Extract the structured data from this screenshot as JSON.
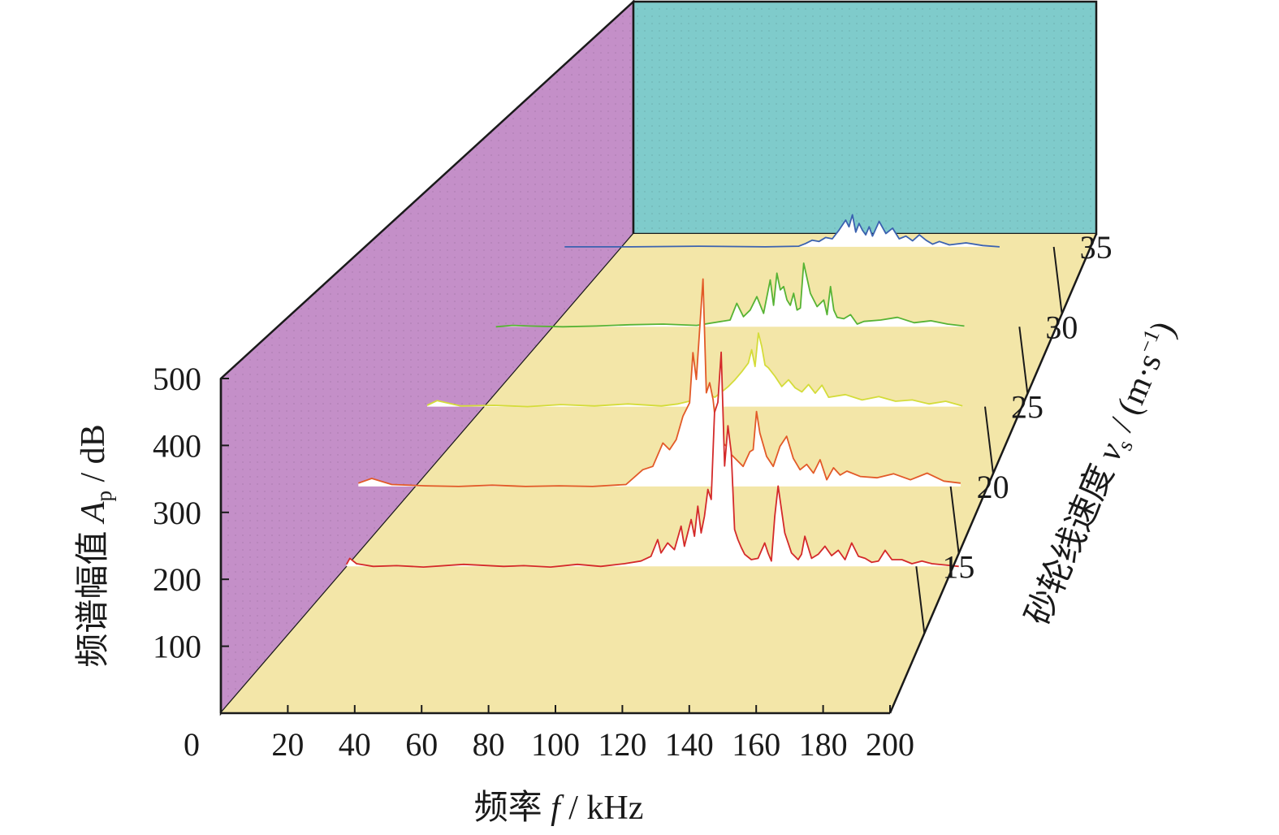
{
  "chart_data": {
    "type": "line",
    "view": "3d-waterfall",
    "title": "",
    "xlabel": {
      "prefix": "频率 ",
      "var": "f",
      "unit": " / kHz"
    },
    "ylabel": {
      "prefix": "频谱幅值 ",
      "var": "A",
      "sub": "p",
      "unit": " / dB"
    },
    "zlabel": {
      "prefix": "砂轮线速度 ",
      "var": "v",
      "sub": "s",
      "unit": " / (m·s",
      "sup": "−1",
      "close": ")"
    },
    "xlim": [
      0,
      200
    ],
    "ylim": [
      0,
      500
    ],
    "x_ticks": [
      "0",
      "20",
      "40",
      "60",
      "80",
      "100",
      "120",
      "140",
      "160",
      "180",
      "200"
    ],
    "y_ticks": [
      "100",
      "200",
      "300",
      "400",
      "500"
    ],
    "z_ticks": [
      "15",
      "20",
      "25",
      "30",
      "35"
    ],
    "walls": {
      "side": "#c48fc8",
      "back": "#7fcbcb",
      "floor": "#f3e6a8"
    },
    "series": [
      {
        "speed": 15,
        "color": "#d42a2a",
        "x": [
          17,
          18,
          20,
          25,
          32,
          40,
          52,
          64,
          70,
          78,
          86,
          93,
          100,
          105,
          108,
          110,
          111,
          113,
          115,
          117,
          118,
          120,
          121,
          122,
          123,
          124,
          125,
          126,
          127,
          128,
          129,
          130,
          131,
          132,
          133,
          134,
          135,
          136,
          138,
          140,
          142,
          143,
          144,
          145,
          146,
          148,
          150,
          152,
          153,
          154,
          156,
          158,
          160,
          162,
          164,
          166,
          168,
          170,
          172,
          174,
          176,
          178,
          180,
          183,
          186,
          189,
          192,
          196,
          200
        ],
        "y": [
          103,
          112,
          104,
          100,
          101,
          99,
          103,
          100,
          101,
          99,
          103,
          100,
          104,
          108,
          115,
          140,
          120,
          135,
          125,
          160,
          130,
          170,
          145,
          190,
          150,
          175,
          215,
          200,
          330,
          345,
          420,
          250,
          310,
          270,
          155,
          140,
          128,
          118,
          110,
          112,
          135,
          120,
          108,
          175,
          220,
          150,
          120,
          110,
          118,
          145,
          112,
          118,
          130,
          116,
          124,
          110,
          135,
          115,
          112,
          106,
          108,
          124,
          110,
          110,
          104,
          108,
          104,
          102,
          100
        ]
      },
      {
        "speed": 20,
        "color": "#e25a28",
        "x": [
          0,
          4,
          10,
          20,
          30,
          40,
          50,
          60,
          70,
          80,
          85,
          88,
          91,
          93,
          95,
          97,
          99,
          100,
          101,
          102,
          103,
          104,
          105,
          106,
          107,
          108,
          109,
          110,
          111,
          113,
          115,
          117,
          118,
          119,
          120,
          122,
          124,
          126,
          128,
          130,
          132,
          134,
          136,
          138,
          140,
          142,
          144,
          146,
          150,
          155,
          160,
          165,
          170,
          175,
          180
        ],
        "y": [
          105,
          112,
          103,
          101,
          100,
          102,
          100,
          101,
          100,
          103,
          125,
          130,
          165,
          155,
          170,
          205,
          225,
          300,
          260,
          335,
          410,
          240,
          255,
          230,
          185,
          175,
          165,
          160,
          150,
          140,
          130,
          152,
          155,
          212,
          180,
          145,
          130,
          160,
          175,
          142,
          125,
          133,
          120,
          140,
          110,
          128,
          117,
          123,
          115,
          113,
          119,
          110,
          120,
          108,
          105
        ]
      },
      {
        "speed": 25,
        "color": "#d4dc3a",
        "x": [
          0,
          3,
          10,
          20,
          30,
          40,
          50,
          60,
          70,
          75,
          80,
          84,
          86,
          88,
          90,
          92,
          94,
          96,
          97,
          98,
          99,
          100,
          101,
          102,
          104,
          106,
          108,
          110,
          112,
          114,
          116,
          118,
          120,
          125,
          130,
          135,
          140,
          145,
          150,
          155,
          160
        ],
        "y": [
          102,
          109,
          101,
          102,
          100,
          103,
          101,
          104,
          101,
          104,
          110,
          118,
          114,
          122,
          130,
          140,
          152,
          165,
          185,
          160,
          210,
          190,
          162,
          158,
          145,
          130,
          140,
          128,
          122,
          133,
          120,
          132,
          114,
          118,
          110,
          115,
          108,
          110,
          104,
          108,
          101
        ]
      },
      {
        "speed": 30,
        "color": "#57b334",
        "x": [
          0,
          5,
          10,
          20,
          30,
          40,
          50,
          60,
          70,
          72,
          74,
          76,
          78,
          80,
          82,
          83,
          84,
          85,
          86,
          87,
          88,
          89,
          90,
          91,
          92,
          94,
          96,
          98,
          99,
          100,
          101,
          102,
          104,
          106,
          108,
          110,
          115,
          120,
          125,
          130,
          135,
          140
        ],
        "y": [
          100,
          102,
          101,
          100,
          101,
          103,
          104,
          102,
          110,
          135,
          115,
          125,
          145,
          120,
          170,
          132,
          180,
          155,
          160,
          140,
          132,
          150,
          125,
          128,
          195,
          150,
          130,
          140,
          118,
          160,
          125,
          114,
          112,
          118,
          104,
          108,
          110,
          114,
          106,
          109,
          104,
          101
        ]
      },
      {
        "speed": 35,
        "color": "#3b62b0",
        "x": [
          0,
          20,
          40,
          60,
          70,
          72,
          74,
          76,
          78,
          80,
          82,
          84,
          85,
          86,
          87,
          88,
          89,
          90,
          91,
          92,
          94,
          96,
          98,
          100,
          102,
          104,
          106,
          108,
          110,
          112,
          115,
          120,
          125,
          130
        ],
        "y": [
          100,
          100,
          101,
          100,
          101,
          105,
          110,
          108,
          114,
          112,
          125,
          140,
          130,
          148,
          122,
          135,
          125,
          118,
          130,
          116,
          138,
          120,
          128,
          112,
          116,
          109,
          118,
          110,
          104,
          108,
          103,
          106,
          102,
          100
        ]
      }
    ]
  }
}
